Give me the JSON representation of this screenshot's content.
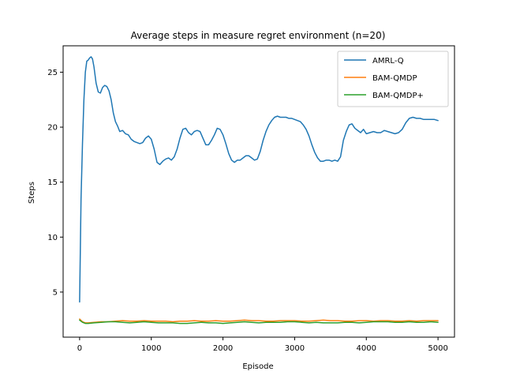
{
  "chart_data": {
    "type": "line",
    "title": "Average steps in measure regret environment (n=20)",
    "xlabel": "Episode",
    "ylabel": "Steps",
    "xlim": [
      -230,
      5230
    ],
    "ylim": [
      0.9,
      27.4
    ],
    "xticks": [
      0,
      1000,
      2000,
      3000,
      4000,
      5000
    ],
    "yticks": [
      5,
      10,
      15,
      20,
      25
    ],
    "grid": false,
    "legend_position": "top-right",
    "series": [
      {
        "name": "AMRL-Q",
        "color": "#1f77b4",
        "x": [
          0,
          20,
          40,
          60,
          80,
          100,
          120,
          140,
          160,
          180,
          200,
          230,
          260,
          290,
          320,
          350,
          380,
          410,
          440,
          470,
          500,
          530,
          560,
          600,
          640,
          680,
          720,
          760,
          800,
          840,
          880,
          920,
          960,
          1000,
          1040,
          1080,
          1120,
          1160,
          1200,
          1240,
          1280,
          1320,
          1360,
          1400,
          1440,
          1480,
          1520,
          1560,
          1600,
          1640,
          1680,
          1720,
          1760,
          1800,
          1840,
          1880,
          1920,
          1960,
          2000,
          2040,
          2080,
          2120,
          2160,
          2200,
          2240,
          2280,
          2320,
          2360,
          2400,
          2440,
          2480,
          2520,
          2560,
          2600,
          2640,
          2680,
          2720,
          2760,
          2800,
          2840,
          2880,
          2920,
          2960,
          3000,
          3040,
          3080,
          3120,
          3160,
          3200,
          3240,
          3280,
          3320,
          3360,
          3400,
          3440,
          3480,
          3520,
          3560,
          3600,
          3640,
          3680,
          3720,
          3760,
          3800,
          3840,
          3880,
          3920,
          3960,
          4000,
          4050,
          4100,
          4150,
          4200,
          4250,
          4300,
          4350,
          4400,
          4450,
          4500,
          4550,
          4600,
          4650,
          4700,
          4750,
          4800,
          4850,
          4900,
          4950,
          5000
        ],
        "y": [
          4.1,
          13.5,
          18.5,
          22.5,
          25.0,
          26.0,
          26.1,
          26.3,
          26.4,
          26.2,
          25.5,
          24.0,
          23.2,
          23.1,
          23.6,
          23.8,
          23.7,
          23.3,
          22.5,
          21.3,
          20.5,
          20.1,
          19.6,
          19.7,
          19.4,
          19.3,
          18.9,
          18.7,
          18.6,
          18.5,
          18.6,
          19.0,
          19.2,
          18.9,
          18.0,
          16.8,
          16.6,
          16.9,
          17.1,
          17.2,
          17.0,
          17.3,
          18.0,
          19.0,
          19.8,
          19.9,
          19.5,
          19.3,
          19.6,
          19.7,
          19.6,
          19.0,
          18.4,
          18.4,
          18.8,
          19.3,
          19.9,
          19.8,
          19.3,
          18.5,
          17.6,
          17.0,
          16.8,
          17.0,
          17.0,
          17.2,
          17.4,
          17.4,
          17.2,
          17.0,
          17.1,
          17.8,
          18.8,
          19.6,
          20.2,
          20.6,
          20.9,
          21.0,
          20.9,
          20.9,
          20.9,
          20.8,
          20.8,
          20.7,
          20.6,
          20.5,
          20.2,
          19.8,
          19.2,
          18.4,
          17.7,
          17.2,
          16.9,
          16.9,
          17.0,
          17.0,
          16.9,
          17.0,
          16.9,
          17.3,
          18.8,
          19.6,
          20.2,
          20.3,
          19.9,
          19.7,
          19.5,
          19.8,
          19.4,
          19.5,
          19.6,
          19.5,
          19.5,
          19.7,
          19.6,
          19.5,
          19.4,
          19.5,
          19.8,
          20.4,
          20.8,
          20.9,
          20.8,
          20.8,
          20.7,
          20.7,
          20.7,
          20.7,
          20.6
        ]
      },
      {
        "name": "BAM-QMDP",
        "color": "#ff7f0e",
        "x": [
          0,
          40,
          80,
          120,
          200,
          300,
          400,
          500,
          600,
          700,
          800,
          900,
          1000,
          1100,
          1200,
          1300,
          1400,
          1500,
          1600,
          1700,
          1800,
          1900,
          2000,
          2100,
          2200,
          2300,
          2400,
          2500,
          2600,
          2700,
          2800,
          2900,
          3000,
          3100,
          3200,
          3300,
          3400,
          3500,
          3600,
          3700,
          3800,
          3900,
          4000,
          4100,
          4200,
          4300,
          4400,
          4500,
          4600,
          4700,
          4800,
          4900,
          5000
        ],
        "y": [
          2.55,
          2.3,
          2.2,
          2.2,
          2.25,
          2.3,
          2.3,
          2.35,
          2.4,
          2.35,
          2.35,
          2.4,
          2.35,
          2.35,
          2.35,
          2.3,
          2.35,
          2.35,
          2.4,
          2.35,
          2.35,
          2.4,
          2.35,
          2.35,
          2.4,
          2.45,
          2.4,
          2.4,
          2.35,
          2.35,
          2.4,
          2.4,
          2.4,
          2.35,
          2.35,
          2.4,
          2.45,
          2.4,
          2.4,
          2.35,
          2.35,
          2.4,
          2.4,
          2.35,
          2.4,
          2.4,
          2.35,
          2.35,
          2.4,
          2.35,
          2.4,
          2.4,
          2.4
        ]
      },
      {
        "name": "BAM-QMDP+",
        "color": "#2ca02c",
        "x": [
          0,
          40,
          80,
          120,
          200,
          300,
          400,
          500,
          600,
          700,
          800,
          900,
          1000,
          1100,
          1200,
          1300,
          1400,
          1500,
          1600,
          1700,
          1800,
          1900,
          2000,
          2100,
          2200,
          2300,
          2400,
          2500,
          2600,
          2700,
          2800,
          2900,
          3000,
          3100,
          3200,
          3300,
          3400,
          3500,
          3600,
          3700,
          3800,
          3900,
          4000,
          4100,
          4200,
          4300,
          4400,
          4500,
          4600,
          4700,
          4800,
          4900,
          5000
        ],
        "y": [
          2.45,
          2.25,
          2.15,
          2.15,
          2.2,
          2.25,
          2.3,
          2.3,
          2.25,
          2.2,
          2.25,
          2.3,
          2.25,
          2.2,
          2.2,
          2.2,
          2.15,
          2.15,
          2.2,
          2.25,
          2.2,
          2.2,
          2.15,
          2.2,
          2.25,
          2.3,
          2.25,
          2.2,
          2.25,
          2.25,
          2.25,
          2.3,
          2.3,
          2.25,
          2.2,
          2.25,
          2.2,
          2.2,
          2.2,
          2.25,
          2.25,
          2.2,
          2.25,
          2.3,
          2.3,
          2.3,
          2.25,
          2.25,
          2.3,
          2.25,
          2.25,
          2.3,
          2.25
        ]
      }
    ]
  }
}
